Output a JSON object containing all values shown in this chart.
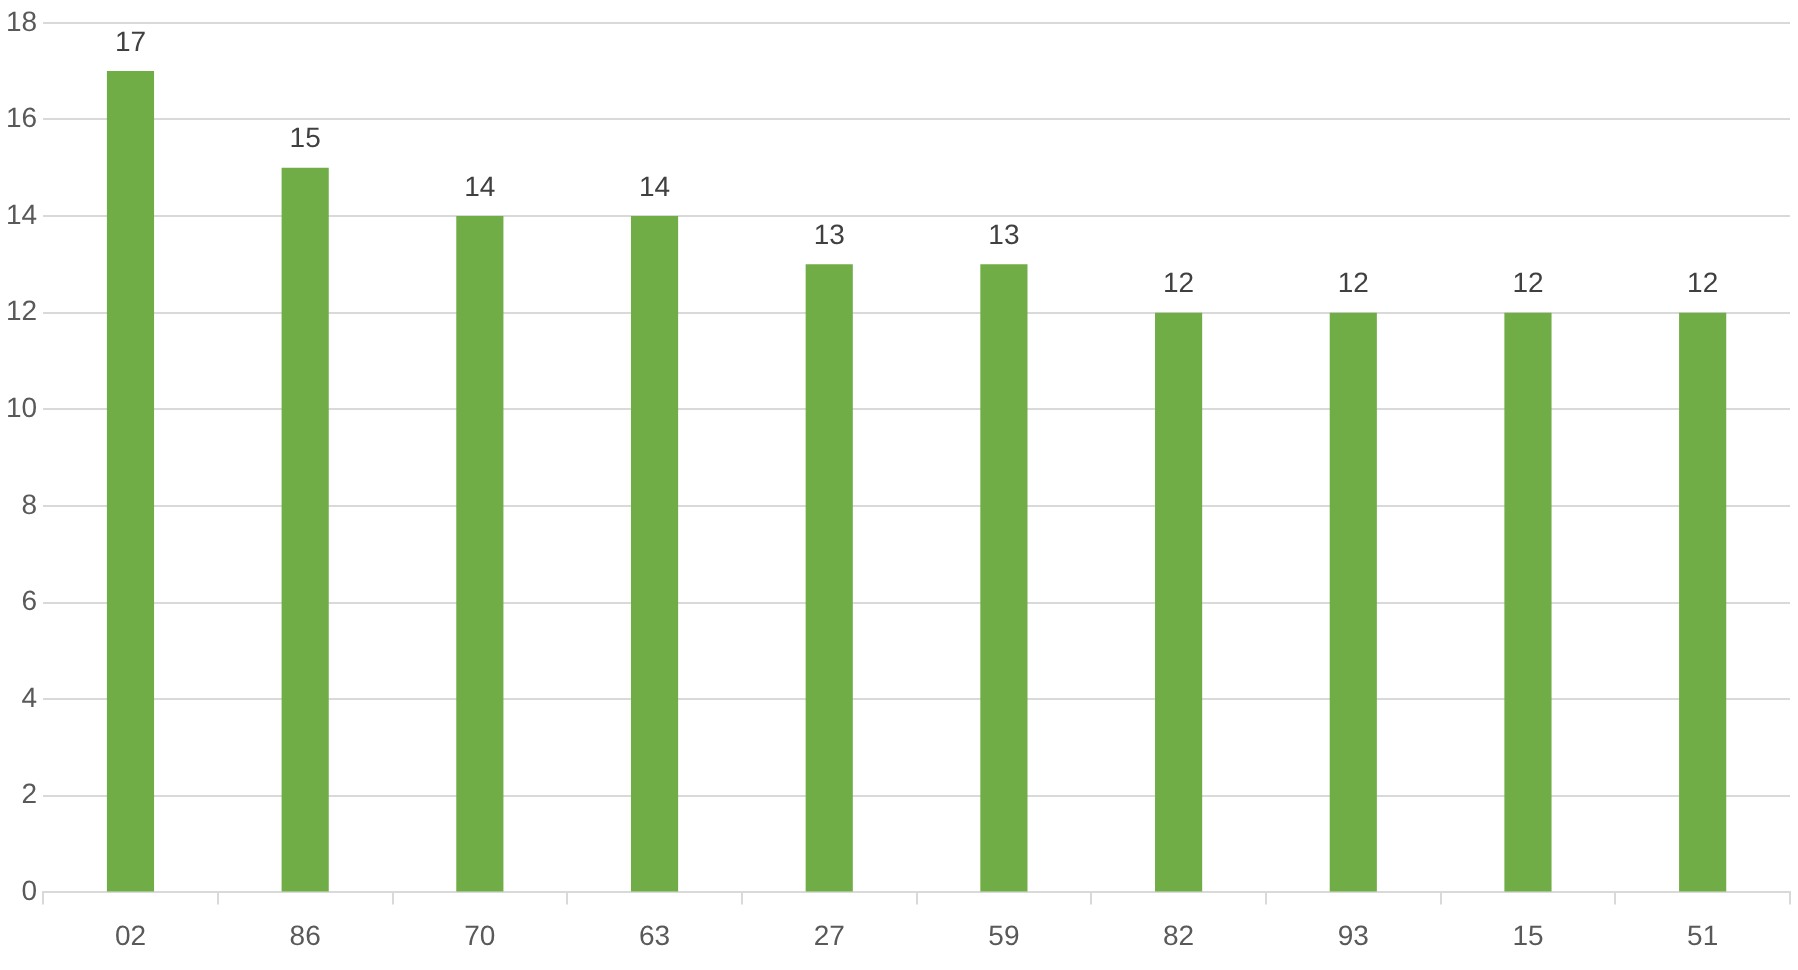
{
  "chart_data": {
    "type": "bar",
    "categories": [
      "02",
      "86",
      "70",
      "63",
      "27",
      "59",
      "82",
      "93",
      "15",
      "51"
    ],
    "values": [
      17,
      15,
      14,
      14,
      13,
      13,
      12,
      12,
      12,
      12
    ],
    "color": "#70ad47",
    "ylim": [
      0,
      18
    ],
    "yticks": [
      0,
      2,
      4,
      6,
      8,
      10,
      12,
      14,
      16,
      18
    ],
    "grid": "y",
    "data_labels": true,
    "legend": false
  }
}
